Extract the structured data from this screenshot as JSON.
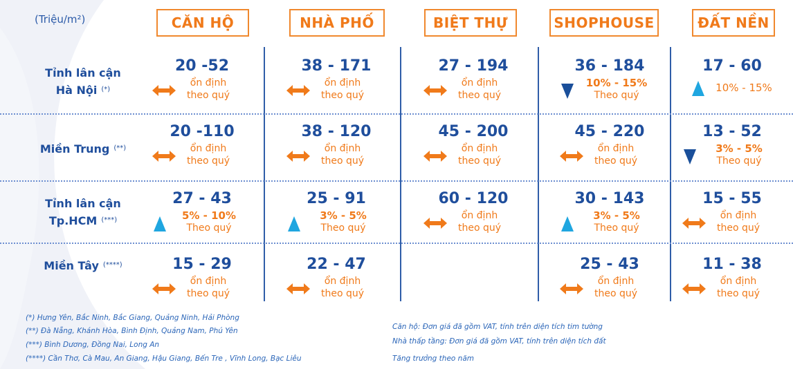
{
  "unit_label": "(Triệu/m²)",
  "headers": [
    "CĂN HỘ",
    "NHÀ PHỐ",
    "BIỆT THỰ",
    "SHOPHOUSE",
    "ĐẤT NỀN"
  ],
  "rows": [
    {
      "label_line1": "Tỉnh lân cận",
      "label_line2": "Hà Nội",
      "mark": "(*)",
      "cells": [
        {
          "value": "20 -52",
          "trend": "stable",
          "note1": "ổn định",
          "note2": "theo quý"
        },
        {
          "value": "38 - 171",
          "trend": "stable",
          "note1": "ổn định",
          "note2": "theo quý"
        },
        {
          "value": "27 - 194",
          "trend": "stable",
          "note1": "ổn định",
          "note2": "theo quý"
        },
        {
          "value": "36 - 184",
          "trend": "down",
          "note1": "10% - 15%",
          "note2": "Theo quý"
        },
        {
          "value": "17 - 60",
          "trend": "up",
          "note1": "10% - 15%",
          "note2": ""
        }
      ]
    },
    {
      "label_line1": "Miền Trung",
      "label_line2": "",
      "mark": "(**)",
      "cells": [
        {
          "value": "20 -110",
          "trend": "stable",
          "note1": "ổn định",
          "note2": "theo quý"
        },
        {
          "value": "38 - 120",
          "trend": "stable",
          "note1": "ổn định",
          "note2": "theo quý"
        },
        {
          "value": "45 - 200",
          "trend": "stable",
          "note1": "ổn định",
          "note2": "theo quý"
        },
        {
          "value": "45 - 220",
          "trend": "stable",
          "note1": "ổn định",
          "note2": "theo quý"
        },
        {
          "value": "13 - 52",
          "trend": "down",
          "note1": "3% - 5%",
          "note2": "Theo quý"
        }
      ]
    },
    {
      "label_line1": "Tỉnh lân cận",
      "label_line2": "Tp.HCM",
      "mark": "(***)",
      "cells": [
        {
          "value": "27 - 43",
          "trend": "up",
          "note1": "5% - 10%",
          "note2": "Theo quý"
        },
        {
          "value": "25 - 91",
          "trend": "up",
          "note1": "3% - 5%",
          "note2": "Theo quý"
        },
        {
          "value": "60 - 120",
          "trend": "stable",
          "note1": "ổn định",
          "note2": "theo quý"
        },
        {
          "value": "30 - 143",
          "trend": "up",
          "note1": "3% - 5%",
          "note2": "Theo quý"
        },
        {
          "value": "15 - 55",
          "trend": "stable",
          "note1": "ổn định",
          "note2": "theo quý"
        }
      ]
    },
    {
      "label_line1": "Miền Tây",
      "label_line2": "",
      "mark": "(****)",
      "cells": [
        {
          "value": "15 - 29",
          "trend": "stable",
          "note1": "ổn định",
          "note2": "theo quý"
        },
        {
          "value": "22 - 47",
          "trend": "stable",
          "note1": "ổn định",
          "note2": "theo quý"
        },
        null,
        {
          "value": "25 - 43",
          "trend": "stable",
          "note1": "ổn định",
          "note2": "theo quý"
        },
        {
          "value": "11 - 38",
          "trend": "stable",
          "note1": "ổn định",
          "note2": "theo quý"
        }
      ]
    }
  ],
  "footnotes_left": [
    "(*) Hưng Yên, Bắc Ninh, Bắc Giang, Quảng Ninh, Hải Phòng",
    "(**) Đà Nẵng, Khánh Hòa, Bình Định, Quảng Nam, Phú Yên",
    "(***) Bình Dương, Đồng Nai, Long An",
    "(****) Cần Thơ, Cà Mau, An Giang, Hậu Giang, Bến Tre , Vĩnh Long, Bạc Liêu"
  ],
  "footnotes_right": [
    "Căn hộ: Đơn giá đã gồm VAT, tính trên diện tích tim tường",
    "Nhà thấp tầng: Đơn giá đã gồm VAT, tính trên diện tích đất",
    "Tăng trưởng theo năm"
  ],
  "colors": {
    "blue": "#1f4e9c",
    "orange": "#f07a1a",
    "arrow_up": "#1fa6e0",
    "arrow_down": "#1a4f9a"
  }
}
